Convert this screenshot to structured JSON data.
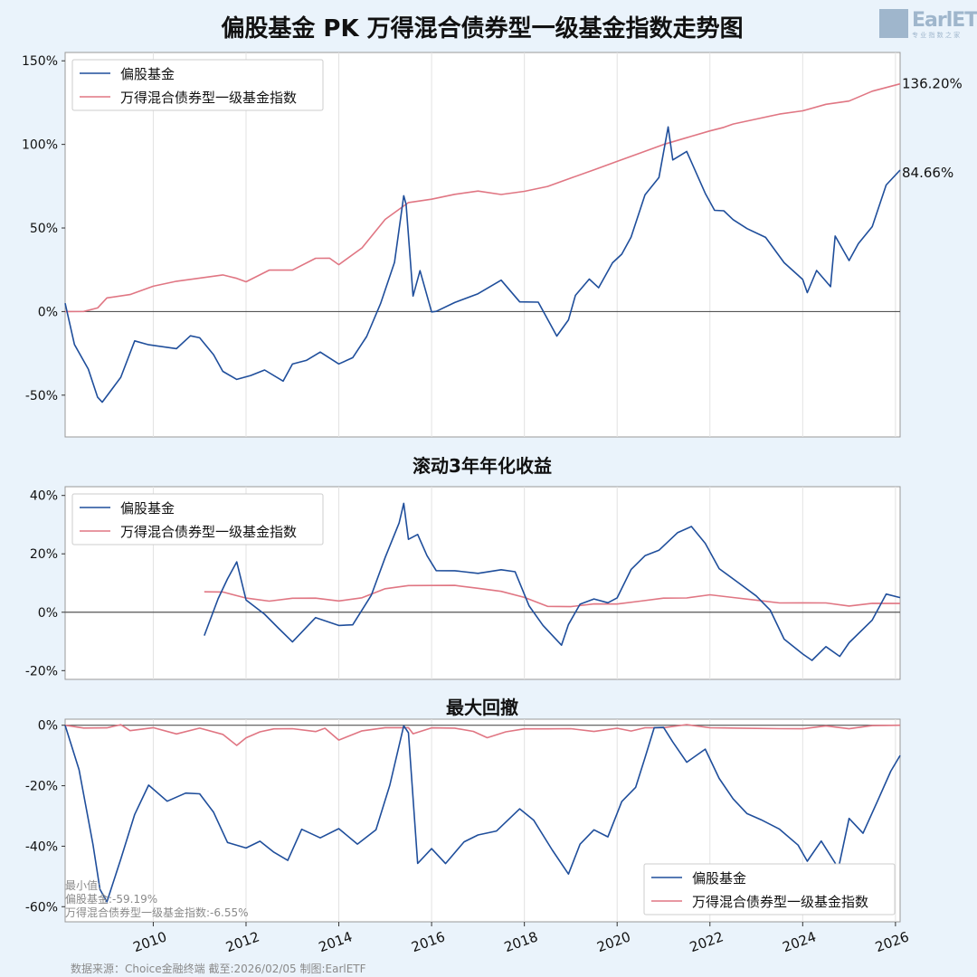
{
  "title": "偏股基金 PK 万得混合债券型一级基金指数走势图",
  "logo": {
    "text": "EarlETF",
    "sub": "专 业 指 数 之 家"
  },
  "footer": "数据来源：Choice金融终端 截至:2026/02/05 制图:EarlETF",
  "colors": {
    "fund": "#1f4e9b",
    "index": "#e07683",
    "zero": "#555555",
    "grid": "#e2e2e2",
    "plot_bg": "#ffffff"
  },
  "x_ticks": [
    "2010",
    "2012",
    "2014",
    "2016",
    "2018",
    "2020",
    "2022",
    "2024",
    "2026"
  ],
  "chart_data": [
    {
      "type": "line",
      "title": "",
      "ylim": [
        -75,
        155
      ],
      "yticks": [
        150,
        100,
        50,
        0,
        -50
      ],
      "ytick_labels": [
        "150%",
        "100%",
        "50%",
        "0%",
        "-50%"
      ],
      "xlim": [
        2008.1,
        2026.1
      ],
      "legend": {
        "position": "top-left"
      },
      "end_labels": [
        "136.20%",
        "84.66%"
      ],
      "series": [
        {
          "name": "偏股基金",
          "color": "#1f4e9b",
          "x": [
            2008.1,
            2008.3,
            2008.6,
            2008.8,
            2008.9,
            2009.3,
            2009.6,
            2009.9,
            2010.5,
            2010.8,
            2011.0,
            2011.3,
            2011.5,
            2011.8,
            2012.1,
            2012.4,
            2012.8,
            2013.0,
            2013.3,
            2013.6,
            2014.0,
            2014.3,
            2014.6,
            2014.9,
            2015.2,
            2015.4,
            2015.45,
            2015.6,
            2015.75,
            2016.0,
            2016.1,
            2016.5,
            2017.0,
            2017.5,
            2017.9,
            2018.3,
            2018.7,
            2018.95,
            2019.1,
            2019.4,
            2019.6,
            2019.9,
            2020.1,
            2020.3,
            2020.6,
            2020.9,
            2021.1,
            2021.2,
            2021.5,
            2021.9,
            2022.1,
            2022.3,
            2022.5,
            2022.8,
            2023.2,
            2023.6,
            2024.0,
            2024.1,
            2024.3,
            2024.6,
            2024.7,
            2025.0,
            2025.2,
            2025.5,
            2025.8,
            2026.1
          ],
          "y": [
            5,
            -20,
            -35,
            -52,
            -55,
            -40,
            -18,
            -20,
            -22,
            -14,
            -15,
            -25,
            -35,
            -40,
            -38,
            -35,
            -42,
            -32,
            -30,
            -25,
            -32,
            -28,
            -15,
            5,
            30,
            70,
            65,
            10,
            25,
            0,
            0,
            5,
            10,
            18,
            5,
            5,
            -15,
            -5,
            10,
            20,
            15,
            30,
            35,
            45,
            70,
            80,
            110,
            90,
            95,
            70,
            60,
            60,
            55,
            50,
            45,
            30,
            20,
            12,
            25,
            15,
            45,
            30,
            40,
            50,
            75,
            84.66
          ]
        },
        {
          "name": "万得混合债券型一级基金指数",
          "color": "#e07683",
          "x": [
            2008.1,
            2008.5,
            2008.8,
            2009.0,
            2009.5,
            2010.0,
            2010.5,
            2011.0,
            2011.5,
            2011.8,
            2012.0,
            2012.5,
            2013.0,
            2013.5,
            2013.8,
            2014.0,
            2014.5,
            2015.0,
            2015.5,
            2016.0,
            2016.5,
            2017.0,
            2017.5,
            2018.0,
            2018.5,
            2019.0,
            2019.5,
            2020.0,
            2020.5,
            2021.0,
            2021.5,
            2022.0,
            2022.3,
            2022.5,
            2023.0,
            2023.5,
            2024.0,
            2024.5,
            2025.0,
            2025.5,
            2026.1
          ],
          "y": [
            0,
            0,
            2,
            8,
            10,
            15,
            18,
            20,
            22,
            20,
            18,
            25,
            25,
            32,
            32,
            28,
            38,
            55,
            65,
            67,
            70,
            72,
            70,
            72,
            75,
            80,
            85,
            90,
            95,
            100,
            104,
            108,
            110,
            112,
            115,
            118,
            120,
            124,
            126,
            132,
            136.2
          ]
        }
      ]
    },
    {
      "type": "line",
      "title": "滚动3年年化收益",
      "ylim": [
        -23,
        43
      ],
      "yticks": [
        40,
        20,
        0,
        -20
      ],
      "ytick_labels": [
        "40%",
        "20%",
        "0%",
        "-20%"
      ],
      "xlim": [
        2008.1,
        2026.1
      ],
      "legend": {
        "position": "top-left"
      },
      "series": [
        {
          "name": "偏股基金",
          "color": "#1f4e9b",
          "x": [
            2011.1,
            2011.4,
            2011.6,
            2011.8,
            2012.0,
            2012.4,
            2012.7,
            2013.0,
            2013.5,
            2014.0,
            2014.3,
            2014.7,
            2015.0,
            2015.3,
            2015.4,
            2015.5,
            2015.7,
            2015.9,
            2016.1,
            2016.5,
            2017.0,
            2017.5,
            2017.8,
            2018.1,
            2018.4,
            2018.8,
            2018.95,
            2019.2,
            2019.5,
            2019.8,
            2020.0,
            2020.3,
            2020.6,
            2020.9,
            2021.3,
            2021.6,
            2021.9,
            2022.2,
            2022.6,
            2023.0,
            2023.3,
            2023.6,
            2024.0,
            2024.2,
            2024.5,
            2024.8,
            2025.0,
            2025.5,
            2025.8,
            2026.1
          ],
          "y": [
            -8,
            5,
            12,
            18,
            5,
            0,
            -5,
            -10,
            -2,
            -5,
            -5,
            5,
            18,
            30,
            37,
            25,
            27,
            20,
            15,
            15,
            14,
            15,
            14,
            2,
            -5,
            -12,
            -5,
            2,
            4,
            3,
            5,
            15,
            20,
            22,
            28,
            30,
            24,
            15,
            10,
            5,
            0,
            -10,
            -15,
            -17,
            -12,
            -15,
            -10,
            -2,
            7,
            5
          ]
        },
        {
          "name": "万得混合债券型一级基金指数",
          "color": "#e07683",
          "x": [
            2011.1,
            2011.5,
            2012.0,
            2012.5,
            2013.0,
            2013.5,
            2014.0,
            2014.5,
            2015.0,
            2015.5,
            2016.0,
            2016.5,
            2017.0,
            2017.5,
            2018.0,
            2018.5,
            2019.0,
            2019.5,
            2020.0,
            2020.5,
            2021.0,
            2021.5,
            2022.0,
            2022.5,
            2023.0,
            2023.5,
            2024.0,
            2024.5,
            2025.0,
            2025.5,
            2026.1
          ],
          "y": [
            7,
            7,
            5,
            4,
            5,
            5,
            4,
            5,
            8,
            9,
            9,
            9,
            8,
            7,
            5,
            2,
            2,
            3,
            3,
            4,
            5,
            5,
            6,
            5,
            4,
            3,
            3,
            3,
            2,
            3,
            3
          ]
        }
      ]
    },
    {
      "type": "line",
      "title": "最大回撤",
      "ylim": [
        -65,
        2
      ],
      "yticks": [
        0,
        -20,
        -40,
        -60
      ],
      "ytick_labels": [
        "0%",
        "-20%",
        "-40%",
        "-60%"
      ],
      "xlim": [
        2008.1,
        2026.1
      ],
      "legend": {
        "position": "bottom-right"
      },
      "annotation": [
        "最小值:",
        "偏股基金:-59.19%",
        "万得混合债券型一级基金指数:-6.55%"
      ],
      "series": [
        {
          "name": "偏股基金",
          "color": "#1f4e9b",
          "x": [
            2008.1,
            2008.4,
            2008.7,
            2008.85,
            2009.0,
            2009.3,
            2009.6,
            2009.9,
            2010.3,
            2010.7,
            2011.0,
            2011.3,
            2011.6,
            2012.0,
            2012.3,
            2012.6,
            2012.9,
            2013.2,
            2013.6,
            2014.0,
            2014.4,
            2014.8,
            2015.1,
            2015.4,
            2015.5,
            2015.7,
            2016.0,
            2016.3,
            2016.7,
            2017.0,
            2017.4,
            2017.9,
            2018.2,
            2018.6,
            2018.95,
            2019.2,
            2019.5,
            2019.8,
            2020.1,
            2020.4,
            2020.6,
            2020.8,
            2021.0,
            2021.2,
            2021.5,
            2021.9,
            2022.2,
            2022.5,
            2022.8,
            2023.1,
            2023.5,
            2023.9,
            2024.1,
            2024.4,
            2024.7,
            2024.75,
            2025.0,
            2025.3,
            2025.6,
            2025.9,
            2026.1
          ],
          "y": [
            0,
            -15,
            -40,
            -55,
            -59.19,
            -45,
            -30,
            -20,
            -25,
            -22,
            -22,
            -28,
            -38,
            -40,
            -38,
            -42,
            -45,
            -35,
            -38,
            -35,
            -40,
            -35,
            -20,
            0,
            -2,
            -45,
            -40,
            -45,
            -38,
            -36,
            -35,
            -28,
            -32,
            -42,
            -50,
            -40,
            -35,
            -37,
            -25,
            -20,
            -10,
            0,
            0,
            -5,
            -12,
            -8,
            -18,
            -25,
            -30,
            -32,
            -35,
            -40,
            -45,
            -38,
            -45,
            -48,
            -30,
            -35,
            -25,
            -15,
            -10
          ]
        },
        {
          "name": "万得混合债券型一级基金指数",
          "color": "#e07683",
          "x": [
            2008.1,
            2008.5,
            2009.0,
            2009.3,
            2009.5,
            2010.0,
            2010.5,
            2011.0,
            2011.5,
            2011.8,
            2012.0,
            2012.3,
            2012.6,
            2013.0,
            2013.5,
            2013.7,
            2014.0,
            2014.5,
            2015.0,
            2015.5,
            2015.6,
            2016.0,
            2016.5,
            2016.9,
            2017.2,
            2017.6,
            2018.0,
            2018.5,
            2019.0,
            2019.5,
            2020.0,
            2020.3,
            2020.6,
            2021.0,
            2021.5,
            2022.0,
            2022.3,
            2022.6,
            2023.0,
            2023.5,
            2024.0,
            2024.5,
            2025.0,
            2025.5,
            2026.1
          ],
          "y": [
            0,
            -1,
            -1,
            0,
            -2,
            -1,
            -3,
            -1,
            -3,
            -6.55,
            -4,
            -2,
            -1,
            -1,
            -2,
            -1,
            -5,
            -2,
            -1,
            -1,
            -3,
            -1,
            -1,
            -2,
            -4,
            -2,
            -1,
            -1,
            -1,
            -2,
            -1,
            -2,
            -1,
            -1,
            0,
            -1,
            -1,
            -1,
            -1,
            -1,
            -1,
            0,
            -1,
            0,
            0
          ]
        }
      ]
    }
  ]
}
